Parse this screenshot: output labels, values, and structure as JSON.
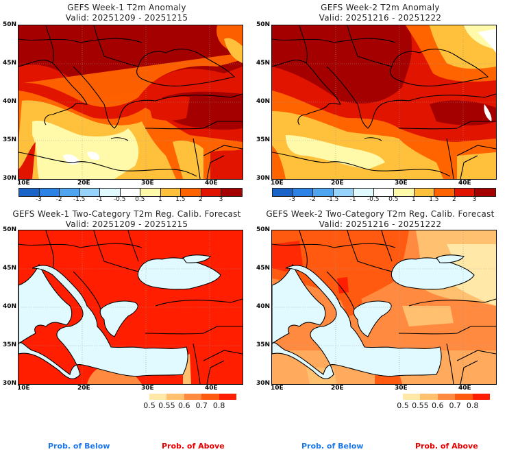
{
  "panels": [
    {
      "title": "GEFS Week-1 T2m Anomaly",
      "valid": "Valid: 20251209 - 20251215",
      "type": "anomaly"
    },
    {
      "title": "GEFS Week-2 T2m Anomaly",
      "valid": "Valid: 20251216 - 20251222",
      "type": "anomaly"
    },
    {
      "title": "GEFS Week-1 Two-Category T2m Reg. Calib. Forecast",
      "valid": "Valid: 20251209 - 20251215",
      "type": "probability"
    },
    {
      "title": "GEFS Week-2 Two-Category T2m Reg. Calib. Forecast",
      "valid": "Valid: 20251216 - 20251222",
      "type": "probability"
    }
  ],
  "axes": {
    "lat_labels": [
      "50N",
      "45N",
      "40N",
      "35N",
      "30N"
    ],
    "lon_labels": [
      "10E",
      "20E",
      "30E",
      "40E"
    ]
  },
  "anomaly_colorbar": {
    "colors": [
      "#1a64c8",
      "#2d82e6",
      "#50a5f0",
      "#96d2fa",
      "#e1faff",
      "#ffffff",
      "#fffaaa",
      "#ffc03c",
      "#ff6400",
      "#e11400",
      "#a50000"
    ],
    "labels": [
      "-3",
      "-2",
      "-1.5",
      "-1",
      "-0.5",
      "0.5",
      "1",
      "1.5",
      "2",
      "3"
    ]
  },
  "prob_colorbar": {
    "colors": [
      "#ffe8a8",
      "#ffc070",
      "#ff8a40",
      "#ff5a10",
      "#ff1e00"
    ],
    "labels": [
      "0.5",
      "0.55",
      "0.6",
      "0.7",
      "0.8"
    ]
  },
  "footer": {
    "below_label": "Prob. of Below",
    "above_label": "Prob. of Above",
    "below_color": "#1e78e6",
    "above_color": "#e60000"
  },
  "colors": {
    "sea": "#e1faff",
    "dark_red": "#a50000",
    "red": "#e11400",
    "orange": "#ff6400",
    "light_orange": "#ffc03c",
    "pale_yellow": "#fffaaa"
  }
}
